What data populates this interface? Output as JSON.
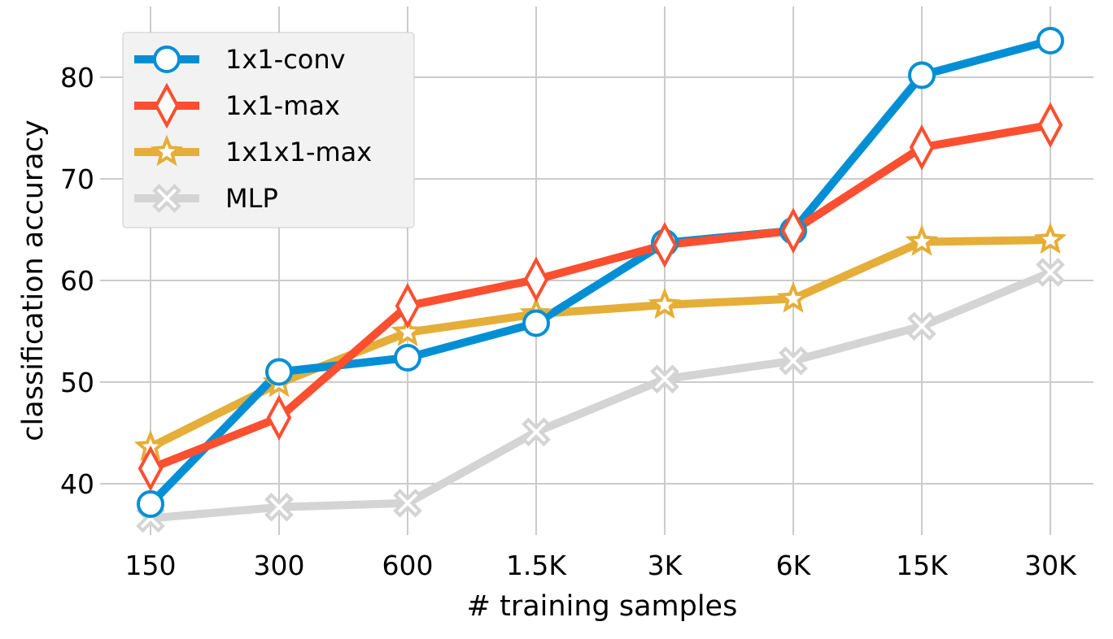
{
  "chart_data": {
    "type": "line",
    "categories": [
      "150",
      "300",
      "600",
      "1.5K",
      "3K",
      "6K",
      "15K",
      "30K"
    ],
    "xlabel": "# training samples",
    "ylabel": "classification accuracy",
    "yticks": [
      "40",
      "50",
      "60",
      "70",
      "80"
    ],
    "ylim": [
      34.5,
      85.5
    ],
    "grid": true,
    "legend_position": "top-left",
    "series": [
      {
        "name": "1x1-conv",
        "color": "#008fd5",
        "marker": "circle",
        "values": [
          38.0,
          51.0,
          52.4,
          55.8,
          63.7,
          64.9,
          80.2,
          83.6
        ]
      },
      {
        "name": "1x1-max",
        "color": "#fc4f30",
        "marker": "thin-diamond",
        "values": [
          41.5,
          46.5,
          57.5,
          60.1,
          63.5,
          64.9,
          73.1,
          75.3
        ]
      },
      {
        "name": "1x1x1-max",
        "color": "#e5ae38",
        "marker": "star",
        "values": [
          43.6,
          49.9,
          54.9,
          56.7,
          57.6,
          58.2,
          63.8,
          64.0
        ]
      },
      {
        "name": "MLP",
        "color": "#d4d4d4",
        "marker": "x-filled",
        "values": [
          36.6,
          37.7,
          38.1,
          45.1,
          50.3,
          52.1,
          55.5,
          60.8
        ]
      }
    ]
  }
}
